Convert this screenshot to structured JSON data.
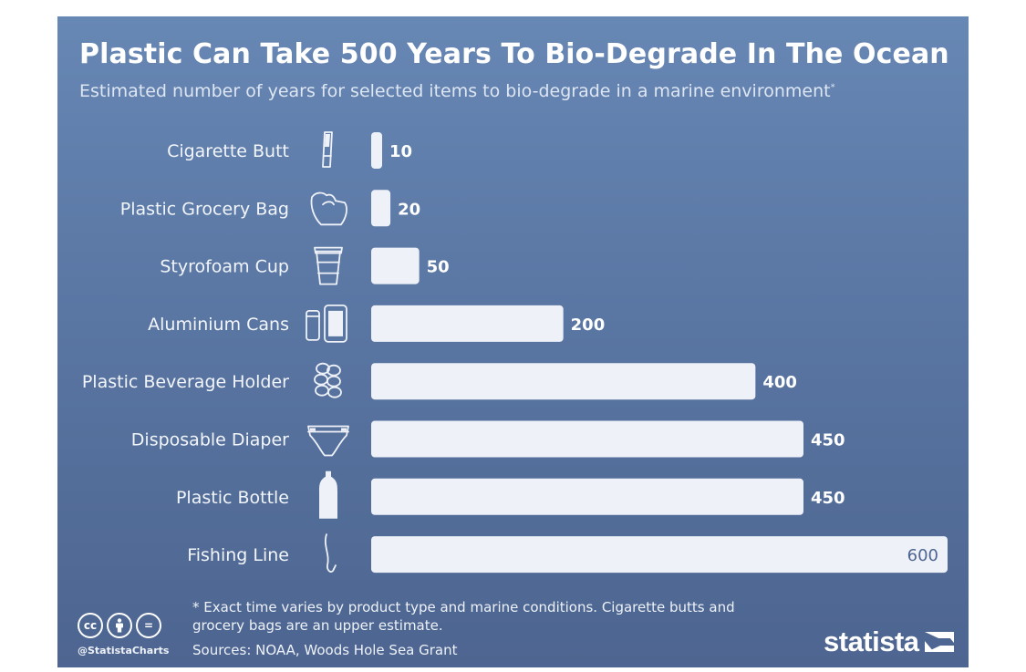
{
  "header": {
    "title": "Plastic Can Take 500 Years To Bio-Degrade In The Ocean",
    "subtitle": "Estimated number of years for selected items to bio-degrade in a marine environment",
    "subtitle_mark": "*"
  },
  "chart_data": {
    "type": "bar",
    "orientation": "horizontal",
    "title": "Plastic Can Take 500 Years To Bio-Degrade In The Ocean",
    "subtitle": "Estimated number of years for selected items to bio-degrade in a marine environment*",
    "categories": [
      "Cigarette Butt",
      "Plastic Grocery Bag",
      "Styrofoam Cup",
      "Aluminium Cans",
      "Plastic Beverage Holder",
      "Disposable Diaper",
      "Plastic Bottle",
      "Fishing Line"
    ],
    "icons": [
      "cigarette-butt-icon",
      "grocery-bag-icon",
      "styrofoam-cup-icon",
      "aluminium-cans-icon",
      "beverage-holder-icon",
      "diaper-icon",
      "plastic-bottle-icon",
      "fishing-line-icon"
    ],
    "values": [
      10,
      20,
      50,
      200,
      400,
      450,
      450,
      600
    ],
    "xlim": [
      0,
      600
    ],
    "grid": false,
    "legend": "none"
  },
  "footer": {
    "footnote": "* Exact time varies by product type and marine conditions. Cigarette butts and grocery bags are an upper estimate.",
    "sources": "Sources: NOAA, Woods Hole Sea Grant",
    "handle": "@StatistaCharts",
    "brand": "statista",
    "cc_symbols": [
      "cc",
      "by",
      "="
    ]
  },
  "colors": {
    "background_top": "#6787b4",
    "background_bottom": "#4d6590",
    "bar": "#eef2f8",
    "text": "#ffffff"
  }
}
